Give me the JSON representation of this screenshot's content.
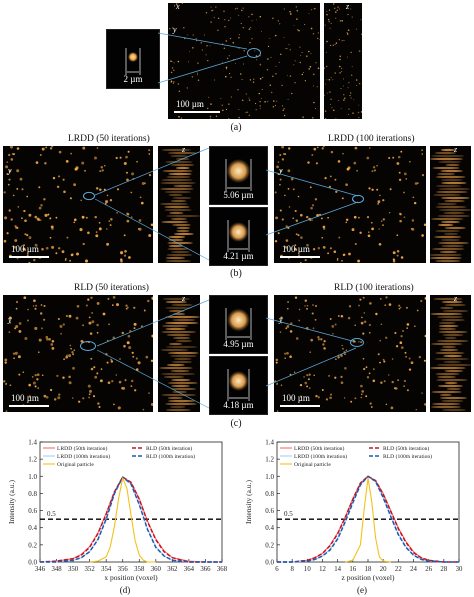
{
  "figure": {
    "panel_a": {
      "caption": "(a)",
      "scale_bar": "100 µm",
      "inset_measure": "2 µm",
      "axis_x": "x",
      "axis_y": "y",
      "axis_z": "z"
    },
    "panel_b": {
      "caption": "(b)",
      "left_title": "LRDD (50 iterations)",
      "right_title": "LRDD (100 iterations)",
      "left_scale_bar": "100 µm",
      "right_scale_bar": "100 µm",
      "inset_top_measure": "5.06 µm",
      "inset_bottom_measure": "4.21 µm"
    },
    "panel_c": {
      "caption": "(c)",
      "left_title": "RLD (50 iterations)",
      "right_title": "RLD (100 iterations)",
      "left_scale_bar": "100 µm",
      "right_scale_bar": "100 µm",
      "inset_top_measure": "4.95 µm",
      "inset_bottom_measure": "4.18 µm"
    },
    "colors": {
      "particle": "#f0a845",
      "link_line": "#5ea8d8",
      "lrdd50": "#ff5a5a",
      "lrdd100": "#9ec9f2",
      "rld50": "#c8141e",
      "rld100": "#1a5ab4",
      "original": "#f2c21a"
    }
  },
  "chart_data": [
    {
      "type": "line",
      "caption": "(d)",
      "xlabel": "x position (voxel)",
      "ylabel": "Intensity (a.u.)",
      "xlim": [
        346,
        368
      ],
      "ylim": [
        0,
        1.4
      ],
      "xticks": [
        "346",
        "348",
        "350",
        "352",
        "354",
        "356",
        "358",
        "360",
        "362",
        "364",
        "366",
        "368"
      ],
      "yticks": [
        "0.0",
        "0.2",
        "0.4",
        "0.6",
        "0.8",
        "1.0",
        "1.2",
        "1.4"
      ],
      "half_max_label": "0.5",
      "half_max": 0.5,
      "legend": [
        "LRDD (50th iteration)",
        "LRDD (100th iteration)",
        "Original particle",
        "RLD (50th iteration)",
        "RLD (100th iteration)"
      ],
      "series": [
        {
          "name": "LRDD (50th iteration)",
          "center": 356.2,
          "fwhm": 5.06,
          "x": [
            346,
            348,
            350,
            351,
            352,
            353,
            354,
            355,
            356,
            357,
            358,
            359,
            360,
            361,
            362,
            364,
            366,
            368
          ],
          "y": [
            0.0,
            0.01,
            0.04,
            0.09,
            0.18,
            0.34,
            0.57,
            0.82,
            0.99,
            0.93,
            0.74,
            0.48,
            0.27,
            0.13,
            0.05,
            0.01,
            0.0,
            0.0
          ]
        },
        {
          "name": "LRDD (100th iteration)",
          "center": 356.2,
          "fwhm": 4.21,
          "x": [
            346,
            348,
            350,
            351,
            352,
            353,
            354,
            355,
            356,
            357,
            358,
            359,
            360,
            361,
            362,
            364,
            366,
            368
          ],
          "y": [
            0.0,
            0.0,
            0.02,
            0.05,
            0.12,
            0.27,
            0.51,
            0.8,
            0.99,
            0.91,
            0.67,
            0.39,
            0.18,
            0.07,
            0.02,
            0.0,
            0.0,
            0.0
          ]
        },
        {
          "name": "RLD (50th iteration)",
          "center": 356.2,
          "fwhm": 4.95,
          "x": [
            346,
            348,
            350,
            351,
            352,
            353,
            354,
            355,
            356,
            357,
            358,
            359,
            360,
            361,
            362,
            364,
            366,
            368
          ],
          "y": [
            0.0,
            0.01,
            0.04,
            0.08,
            0.17,
            0.33,
            0.56,
            0.82,
            0.99,
            0.93,
            0.73,
            0.47,
            0.26,
            0.12,
            0.05,
            0.0,
            0.0,
            0.0
          ]
        },
        {
          "name": "RLD (100th iteration)",
          "center": 356.2,
          "fwhm": 4.18,
          "x": [
            346,
            348,
            350,
            351,
            352,
            353,
            354,
            355,
            356,
            357,
            358,
            359,
            360,
            361,
            362,
            364,
            366,
            368
          ],
          "y": [
            0.0,
            0.0,
            0.02,
            0.05,
            0.12,
            0.26,
            0.5,
            0.8,
            0.99,
            0.91,
            0.67,
            0.38,
            0.17,
            0.07,
            0.02,
            0.0,
            0.0,
            0.0
          ]
        },
        {
          "name": "Original particle",
          "center": 356.2,
          "fwhm": 2.0,
          "x": [
            352,
            353,
            354,
            354.5,
            355,
            355.5,
            356,
            356.5,
            357,
            357.5,
            358,
            358.5,
            359,
            360
          ],
          "y": [
            0.0,
            0.01,
            0.06,
            0.18,
            0.42,
            0.74,
            0.98,
            0.86,
            0.55,
            0.25,
            0.08,
            0.02,
            0.0,
            0.0
          ]
        }
      ]
    },
    {
      "type": "line",
      "caption": "(e)",
      "xlabel": "z position (voxel)",
      "ylabel": "Intensity (a.u.)",
      "xlim": [
        6,
        30
      ],
      "ylim": [
        0,
        1.4
      ],
      "xticks": [
        "6",
        "8",
        "10",
        "12",
        "14",
        "16",
        "18",
        "20",
        "22",
        "24",
        "26",
        "28",
        "30"
      ],
      "yticks": [
        "0.0",
        "0.2",
        "0.4",
        "0.6",
        "0.8",
        "1.0",
        "1.2",
        "1.4"
      ],
      "half_max_label": "0.5",
      "half_max": 0.5,
      "legend": [
        "LRDD (50th iteration)",
        "LRDD (100th iteration)",
        "Original particle",
        "RLD (50th iteration)",
        "RLD (100th iteration)"
      ],
      "series": [
        {
          "name": "LRDD (50th iteration)",
          "center": 18.2,
          "x": [
            6,
            8,
            10,
            11,
            12,
            13,
            14,
            15,
            16,
            17,
            18,
            19,
            20,
            21,
            22,
            23,
            24,
            25,
            26,
            28,
            30
          ],
          "y": [
            0.0,
            0.0,
            0.02,
            0.05,
            0.1,
            0.2,
            0.34,
            0.53,
            0.74,
            0.92,
            1.0,
            0.95,
            0.8,
            0.6,
            0.4,
            0.24,
            0.12,
            0.05,
            0.02,
            0.0,
            0.0
          ]
        },
        {
          "name": "LRDD (100th iteration)",
          "center": 18.2,
          "x": [
            6,
            8,
            10,
            11,
            12,
            13,
            14,
            15,
            16,
            17,
            18,
            19,
            20,
            21,
            22,
            23,
            24,
            25,
            26,
            28,
            30
          ],
          "y": [
            0.0,
            0.0,
            0.01,
            0.03,
            0.07,
            0.15,
            0.28,
            0.48,
            0.7,
            0.9,
            1.0,
            0.94,
            0.76,
            0.54,
            0.33,
            0.18,
            0.08,
            0.03,
            0.01,
            0.0,
            0.0
          ]
        },
        {
          "name": "RLD (50th iteration)",
          "center": 18.2,
          "x": [
            6,
            8,
            10,
            11,
            12,
            13,
            14,
            15,
            16,
            17,
            18,
            19,
            20,
            21,
            22,
            23,
            24,
            25,
            26,
            28,
            30
          ],
          "y": [
            0.0,
            0.0,
            0.02,
            0.05,
            0.1,
            0.19,
            0.33,
            0.52,
            0.73,
            0.92,
            1.0,
            0.95,
            0.79,
            0.59,
            0.39,
            0.23,
            0.11,
            0.05,
            0.02,
            0.0,
            0.0
          ]
        },
        {
          "name": "RLD (100th iteration)",
          "center": 18.2,
          "x": [
            6,
            8,
            10,
            11,
            12,
            13,
            14,
            15,
            16,
            17,
            18,
            19,
            20,
            21,
            22,
            23,
            24,
            25,
            26,
            28,
            30
          ],
          "y": [
            0.0,
            0.0,
            0.01,
            0.03,
            0.07,
            0.14,
            0.27,
            0.47,
            0.69,
            0.9,
            1.0,
            0.94,
            0.75,
            0.53,
            0.32,
            0.17,
            0.08,
            0.03,
            0.01,
            0.0,
            0.0
          ]
        },
        {
          "name": "Original particle",
          "center": 18.2,
          "x": [
            15,
            16,
            17,
            17.5,
            18,
            18.5,
            19,
            19.5,
            20,
            21
          ],
          "y": [
            0.0,
            0.02,
            0.2,
            0.62,
            0.98,
            0.7,
            0.28,
            0.06,
            0.01,
            0.0
          ]
        }
      ]
    }
  ]
}
